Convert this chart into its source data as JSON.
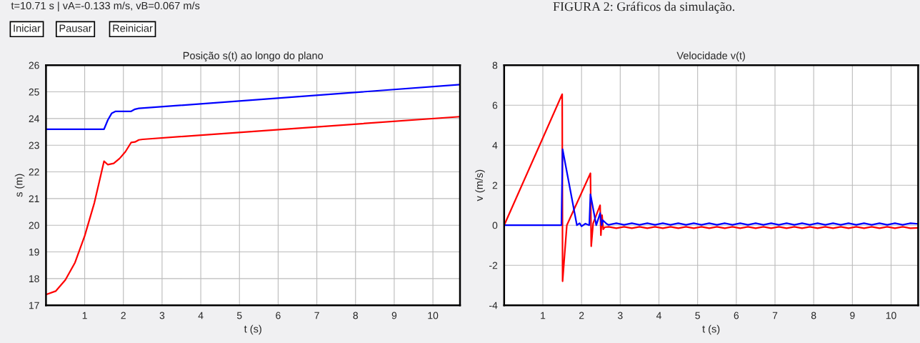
{
  "chart_data": [
    {
      "type": "line",
      "title": "Posição s(t) ao longo do plano",
      "xlabel": "t (s)",
      "ylabel": "s (m)",
      "xlim": [
        0,
        10.7
      ],
      "ylim": [
        17,
        26
      ],
      "xticks": [
        1,
        2,
        3,
        4,
        5,
        6,
        7,
        8,
        9,
        10
      ],
      "yticks": [
        17,
        18,
        19,
        20,
        21,
        22,
        23,
        24,
        25,
        26
      ],
      "grid": true,
      "annotations": [
        "FIGURA 2: Gráficos da simulação.",
        "t=10.71 s | vA=-0.133 m/s, vB=0.067 m/s",
        "Iniciar",
        "Pausar",
        "Reiniciar"
      ],
      "series": [
        {
          "color": "#ff0000",
          "x": [
            0,
            0.25,
            0.5,
            0.75,
            1.0,
            1.25,
            1.5,
            1.6,
            1.75,
            1.9,
            2.05,
            2.2,
            2.3,
            2.4,
            2.5,
            10.7
          ],
          "values": [
            17.4,
            17.53,
            17.95,
            18.6,
            19.6,
            20.84,
            22.4,
            22.27,
            22.32,
            22.5,
            22.75,
            23.1,
            23.12,
            23.2,
            23.22,
            24.07
          ]
        },
        {
          "color": "#0000ff",
          "x": [
            0,
            1.5,
            1.6,
            1.7,
            1.8,
            2.2,
            2.3,
            2.4,
            10.7
          ],
          "values": [
            23.6,
            23.6,
            23.95,
            24.2,
            24.27,
            24.27,
            24.35,
            24.38,
            25.27
          ]
        }
      ]
    },
    {
      "type": "line",
      "title": "Velocidade v(t)",
      "xlabel": "t (s)",
      "ylabel": "v (m/s)",
      "xlim": [
        0,
        10.7
      ],
      "ylim": [
        -4,
        8
      ],
      "xticks": [
        1,
        2,
        3,
        4,
        5,
        6,
        7,
        8,
        9,
        10
      ],
      "yticks": [
        -4,
        -2,
        0,
        2,
        4,
        6,
        8
      ],
      "grid": true,
      "series": [
        {
          "color": "#ff0000",
          "x": [
            0,
            1.5,
            1.51,
            1.62,
            2.23,
            2.25,
            2.3,
            2.48,
            2.5,
            2.53,
            2.56,
            2.6,
            2.7,
            2.9,
            3.1,
            3.3,
            3.5,
            3.7,
            3.9,
            4.1,
            4.3,
            4.5,
            4.7,
            4.9,
            5.1,
            5.3,
            5.5,
            5.7,
            5.9,
            6.1,
            6.3,
            6.5,
            6.7,
            6.9,
            7.1,
            7.3,
            7.5,
            7.7,
            7.9,
            8.1,
            8.3,
            8.5,
            8.7,
            8.9,
            9.1,
            9.3,
            9.5,
            9.7,
            9.9,
            10.1,
            10.3,
            10.5,
            10.7
          ],
          "values": [
            0,
            6.55,
            -2.8,
            0,
            2.6,
            -1.05,
            0.1,
            1.0,
            -0.5,
            0.5,
            -0.2,
            -0.1,
            -0.08,
            -0.15,
            -0.08,
            -0.15,
            -0.08,
            -0.15,
            -0.08,
            -0.15,
            -0.08,
            -0.15,
            -0.08,
            -0.15,
            -0.08,
            -0.15,
            -0.08,
            -0.15,
            -0.08,
            -0.15,
            -0.08,
            -0.15,
            -0.08,
            -0.15,
            -0.08,
            -0.15,
            -0.08,
            -0.15,
            -0.08,
            -0.15,
            -0.08,
            -0.15,
            -0.08,
            -0.15,
            -0.08,
            -0.15,
            -0.08,
            -0.15,
            -0.08,
            -0.15,
            -0.08,
            -0.15,
            -0.13
          ]
        },
        {
          "color": "#0000ff",
          "x": [
            0,
            1.48,
            1.51,
            1.88,
            1.95,
            2.0,
            2.1,
            2.2,
            2.23,
            2.38,
            2.48,
            2.52,
            2.55,
            2.65,
            2.7,
            2.9,
            3.1,
            3.3,
            3.5,
            3.7,
            3.9,
            4.1,
            4.3,
            4.5,
            4.7,
            4.9,
            5.1,
            5.3,
            5.5,
            5.7,
            5.9,
            6.1,
            6.3,
            6.5,
            6.7,
            6.9,
            7.1,
            7.3,
            7.5,
            7.7,
            7.9,
            8.1,
            8.3,
            8.5,
            8.7,
            8.9,
            9.1,
            9.3,
            9.5,
            9.7,
            9.9,
            10.1,
            10.3,
            10.5,
            10.7
          ],
          "values": [
            0,
            0,
            3.8,
            0,
            0.1,
            -0.05,
            0.08,
            0,
            1.55,
            0,
            0.6,
            0,
            0.25,
            0.07,
            0.02,
            0.1,
            0.02,
            0.1,
            0.02,
            0.1,
            0.02,
            0.1,
            0.02,
            0.1,
            0.02,
            0.1,
            0.02,
            0.1,
            0.02,
            0.1,
            0.02,
            0.1,
            0.02,
            0.1,
            0.02,
            0.1,
            0.02,
            0.1,
            0.02,
            0.1,
            0.02,
            0.1,
            0.02,
            0.1,
            0.02,
            0.1,
            0.02,
            0.1,
            0.02,
            0.1,
            0.02,
            0.1,
            0.02,
            0.1,
            0.07
          ]
        }
      ]
    }
  ]
}
